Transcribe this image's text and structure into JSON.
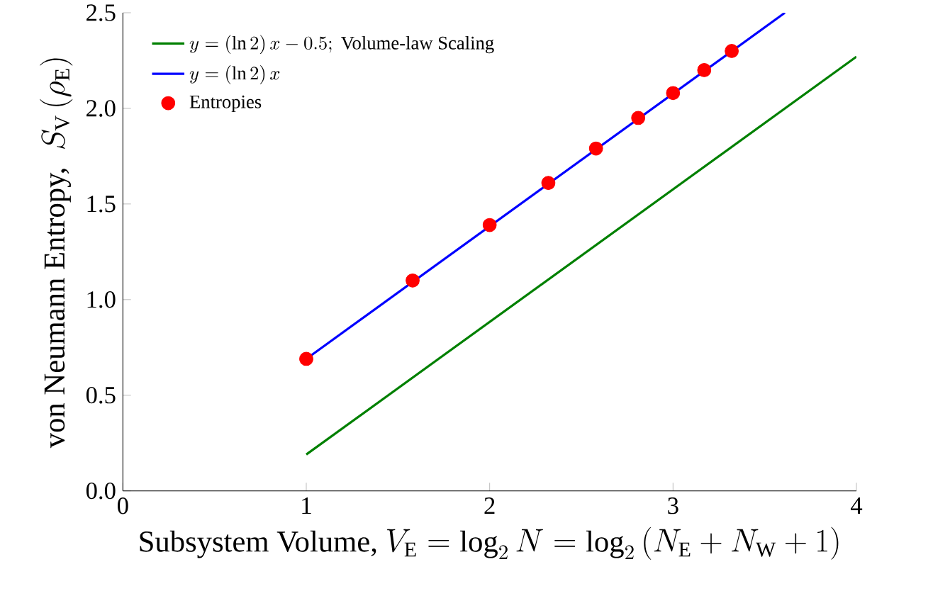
{
  "chart_data": {
    "type": "scatter",
    "xlabel": "\\textrm{Subsystem Volume, }V_{\\mathrm{E}}=\\log_{2}N=\\log_{2}\\left(N_{\\mathrm{E}}+N_{\\mathrm{W}}+1\\right)",
    "ylabel": "\\textrm{von Neumann Entropy, }\\;S_{\\mathrm{V}}\\left(\\rho_{\\mathrm{E}}\\right)",
    "xlim": [
      0,
      4
    ],
    "ylim": [
      0,
      2.5
    ],
    "xticks": [
      0,
      1,
      2,
      3,
      4
    ],
    "yticks": [
      {
        "value": 0,
        "label": "0.0"
      },
      {
        "value": 0.5,
        "label": "0.5"
      },
      {
        "value": 1,
        "label": "1.0"
      },
      {
        "value": 1.5,
        "label": "1.5"
      },
      {
        "value": 2,
        "label": "2.0"
      },
      {
        "value": 2.5,
        "label": "2.5"
      }
    ],
    "legend": "top left",
    "grid": false,
    "marker": "circle",
    "series": [
      {
        "type": "line",
        "name": "y=(\\ln 2)\\,x-0.5;\\ \\textrm{Volume-law Scaling}",
        "color": "#008000",
        "marker": "none",
        "x": [
          1,
          4
        ],
        "values": [
          0.19,
          2.27
        ]
      },
      {
        "type": "line",
        "name": "y=(\\ln 2)\\,x",
        "color": "#0000ff",
        "marker": "none",
        "x": [
          1,
          3.61
        ],
        "values": [
          0.69,
          2.5
        ]
      },
      {
        "name": "\\textrm{Entropies}",
        "color": "#ff0000",
        "x": [
          1,
          1.58,
          2,
          2.32,
          2.58,
          2.81,
          3,
          3.17,
          3.32
        ],
        "values": [
          0.69,
          1.1,
          1.39,
          1.61,
          1.79,
          1.95,
          2.08,
          2.2,
          2.3
        ]
      }
    ]
  }
}
